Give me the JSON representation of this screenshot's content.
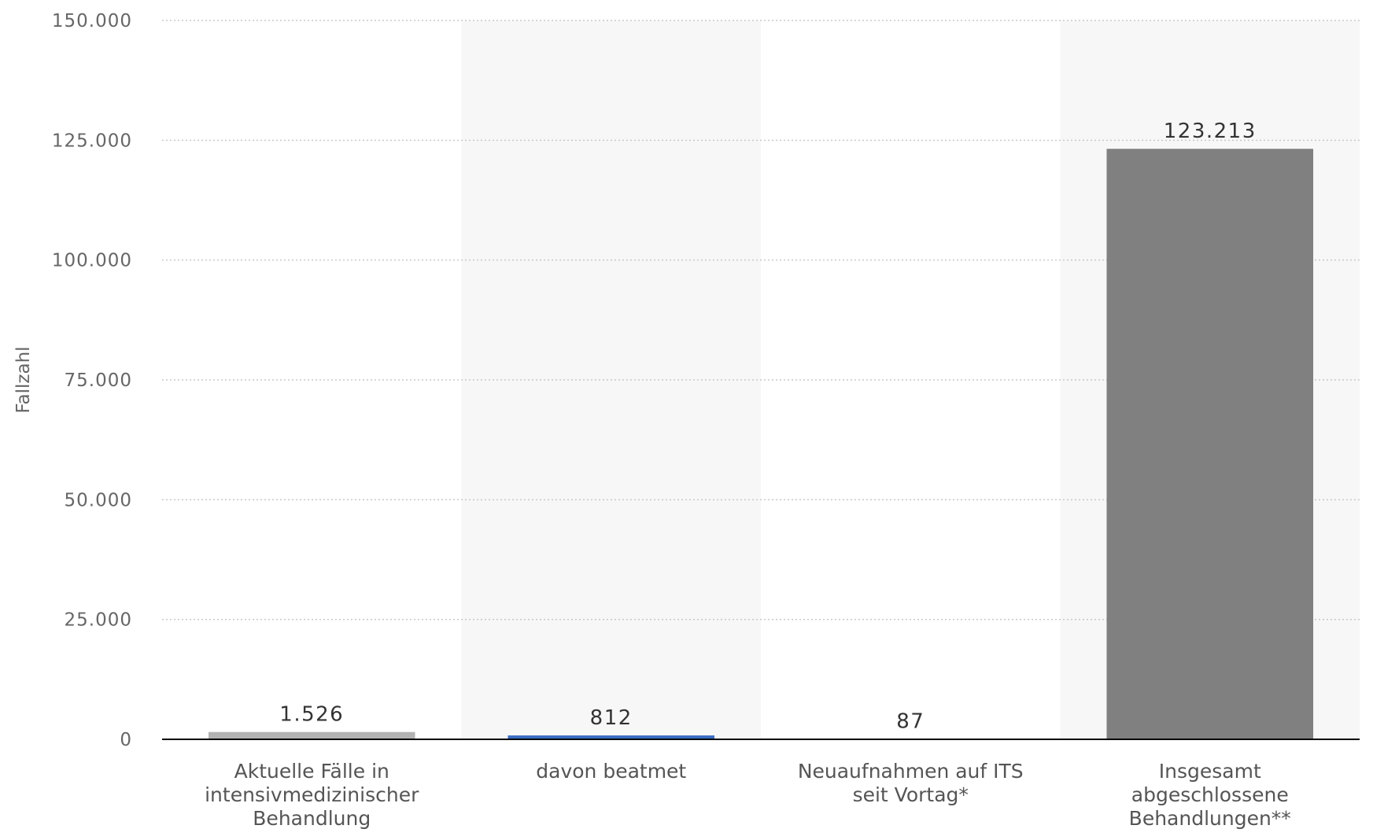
{
  "chart_data": {
    "type": "bar",
    "title": "",
    "xlabel": "",
    "ylabel": "Fallzahl",
    "ylim": [
      0,
      150000
    ],
    "yticks": [
      0,
      25000,
      50000,
      75000,
      100000,
      125000,
      150000
    ],
    "ytick_labels": [
      "0",
      "25.000",
      "50.000",
      "75.000",
      "100.000",
      "125.000",
      "150.000"
    ],
    "grid": true,
    "legend": "none",
    "categories": [
      [
        "Aktuelle Fälle in",
        "intensivmedizinischer",
        "Behandlung"
      ],
      [
        "davon beatmet"
      ],
      [
        "Neuaufnahmen auf ITS",
        "seit Vortag*"
      ],
      [
        "Insgesamt",
        "abgeschlossene",
        "Behandlungen**"
      ]
    ],
    "values": [
      1526,
      812,
      87,
      123213
    ],
    "value_labels": [
      "1.526",
      "812",
      "87",
      "123.213"
    ],
    "colors": [
      "#b3b3b3",
      "#3b6cc4",
      "#8c8c8c",
      "#808080"
    ],
    "band_color": "#f7f7f7"
  }
}
